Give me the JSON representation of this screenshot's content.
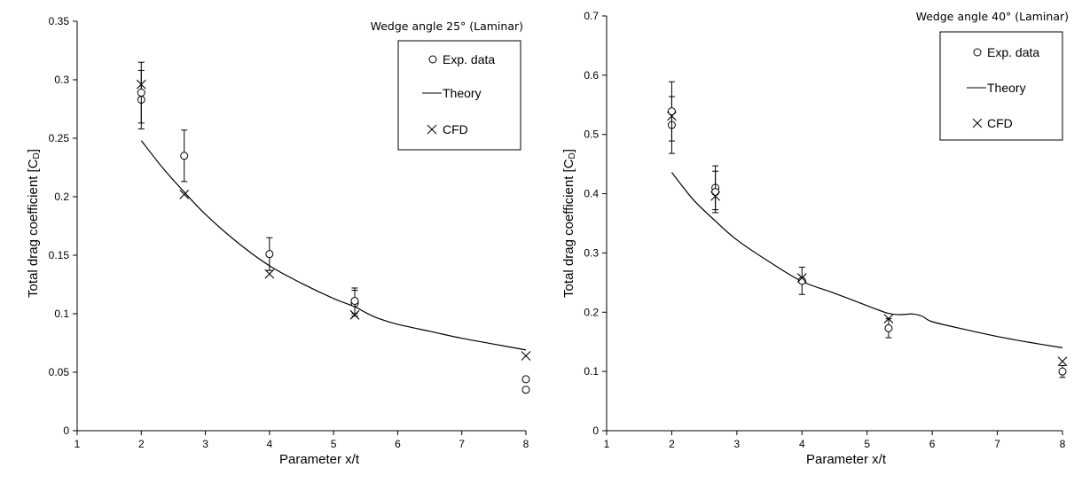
{
  "chart_data": [
    {
      "type": "scatter",
      "annotation": "Wedge angle 25° (Laminar)",
      "xlabel": "Parameter x/t",
      "ylabel": "Total drag coefficient [C",
      "ylabel_sub": "D",
      "ylabel_end": "]",
      "xlim": [
        1,
        8
      ],
      "ylim": [
        0,
        0.35
      ],
      "xticks": [
        "1",
        "2",
        "3",
        "4",
        "5",
        "6",
        "7",
        "8"
      ],
      "yticks": [
        "0",
        "0.05",
        "0.1",
        "0.15",
        "0.2",
        "0.25",
        "0.3",
        "0.35"
      ],
      "legend": [
        "Exp. data",
        "Theory",
        "CFD"
      ],
      "exp_points": [
        {
          "x": 2,
          "y": 0.283,
          "err": 0.025
        },
        {
          "x": 2,
          "y": 0.289,
          "err": 0.026
        },
        {
          "x": 2.67,
          "y": 0.235,
          "err": 0.022
        },
        {
          "x": 4,
          "y": 0.151,
          "err": 0.014
        },
        {
          "x": 5.33,
          "y": 0.109,
          "err": 0.011
        },
        {
          "x": 5.33,
          "y": 0.111,
          "err": 0.011
        },
        {
          "x": 8,
          "y": 0.044,
          "err": 0
        },
        {
          "x": 8,
          "y": 0.035,
          "err": 0
        }
      ],
      "cfd_points": [
        {
          "x": 2,
          "y": 0.296
        },
        {
          "x": 2.67,
          "y": 0.202
        },
        {
          "x": 4,
          "y": 0.134
        },
        {
          "x": 5.33,
          "y": 0.099
        },
        {
          "x": 8,
          "y": 0.064
        }
      ],
      "theory_curve": {
        "x": [
          2,
          2.33,
          2.67,
          3,
          3.5,
          4,
          4.5,
          5,
          5.33,
          5.5,
          5.7,
          6,
          6.5,
          7,
          7.5,
          8
        ],
        "y": [
          0.248,
          0.225,
          0.204,
          0.185,
          0.161,
          0.141,
          0.126,
          0.113,
          0.106,
          0.101,
          0.096,
          0.091,
          0.085,
          0.079,
          0.074,
          0.069
        ]
      }
    },
    {
      "type": "scatter",
      "annotation": "Wedge angle 40° (Laminar)",
      "xlabel": "Parameter x/t",
      "ylabel": "Total drag coefficient [C",
      "ylabel_sub": "D",
      "ylabel_end": "]",
      "xlim": [
        1,
        8
      ],
      "ylim": [
        0,
        0.7
      ],
      "xticks": [
        "1",
        "2",
        "3",
        "4",
        "5",
        "6",
        "7",
        "8"
      ],
      "yticks": [
        "0",
        "0.1",
        "0.2",
        "0.3",
        "0.4",
        "0.5",
        "0.6",
        "0.7"
      ],
      "legend": [
        "Exp. data",
        "Theory",
        "CFD"
      ],
      "exp_points": [
        {
          "x": 2,
          "y": 0.516,
          "err": 0.048
        },
        {
          "x": 2,
          "y": 0.539,
          "err": 0.05
        },
        {
          "x": 2.67,
          "y": 0.41,
          "err": 0.037
        },
        {
          "x": 2.67,
          "y": 0.403,
          "err": 0.035
        },
        {
          "x": 4,
          "y": 0.253,
          "err": 0.023
        },
        {
          "x": 5.33,
          "y": 0.173,
          "err": 0.016
        },
        {
          "x": 8,
          "y": 0.1,
          "err": 0.01
        }
      ],
      "cfd_points": [
        {
          "x": 2,
          "y": 0.531
        },
        {
          "x": 2.67,
          "y": 0.396
        },
        {
          "x": 4,
          "y": 0.258
        },
        {
          "x": 5.33,
          "y": 0.189
        },
        {
          "x": 8,
          "y": 0.117
        }
      ],
      "theory_curve": {
        "x": [
          2,
          2.33,
          2.67,
          3,
          3.5,
          4,
          4.5,
          5,
          5.33,
          5.5,
          5.7,
          5.85,
          6,
          6.5,
          7,
          7.5,
          8
        ],
        "y": [
          0.436,
          0.39,
          0.354,
          0.322,
          0.285,
          0.252,
          0.232,
          0.211,
          0.198,
          0.196,
          0.197,
          0.193,
          0.184,
          0.171,
          0.159,
          0.149,
          0.14
        ]
      }
    }
  ]
}
